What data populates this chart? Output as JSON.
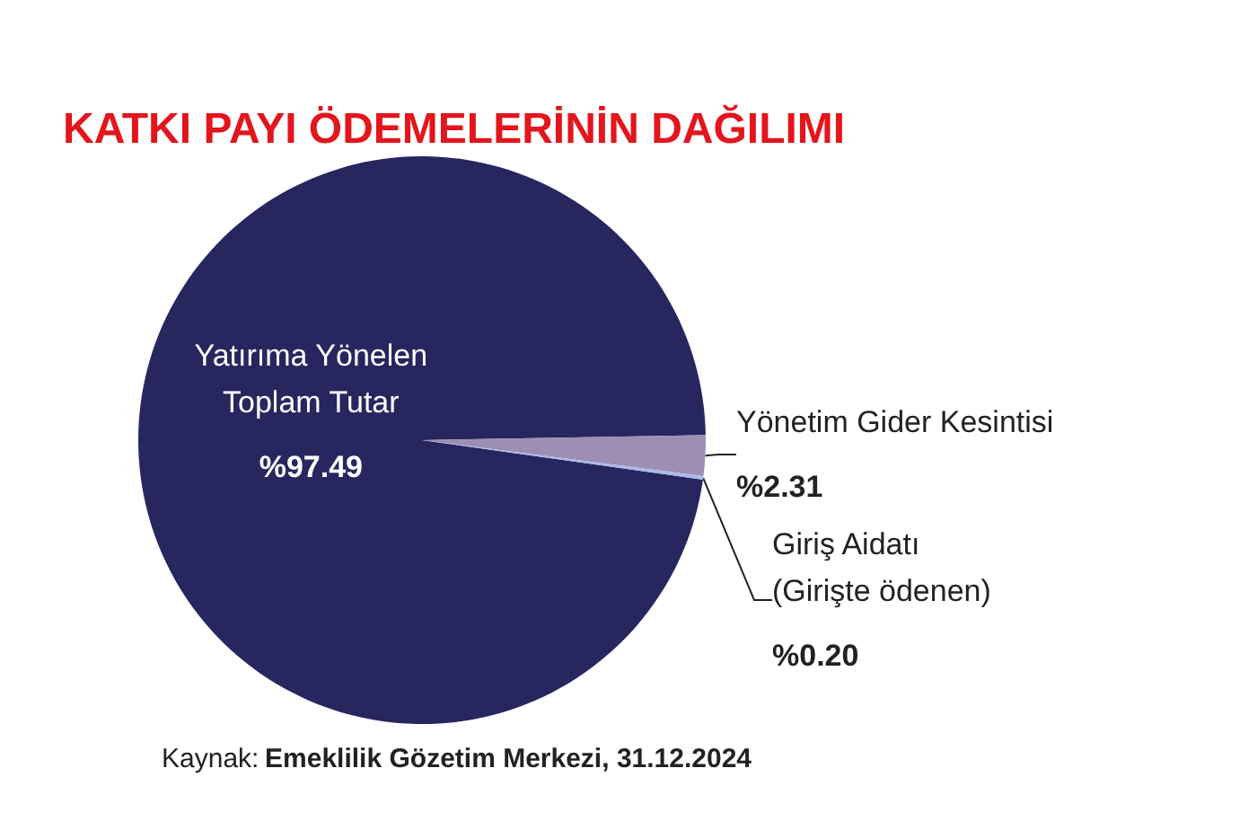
{
  "chart_data": {
    "type": "pie",
    "title": "KATKI PAYI ÖDEMELERİNİN DAĞILIMI",
    "categories": [
      "Yatırıma Yönelen\nToplam Tutar",
      "Yönetim Gider Kesintisi",
      "Giriş Aidatı\n(Girişte ödenen)"
    ],
    "values": [
      97.49,
      2.31,
      0.2
    ],
    "colors": [
      "#27265f",
      "#9d8fb4",
      "#a9b9e9"
    ],
    "value_labels": [
      "%97.49",
      "%2.31",
      "%0.20"
    ],
    "legend": false,
    "annotations": [
      "Kaynak: Emeklilik Gözetim Merkezi, 31.12.2024"
    ]
  }
}
